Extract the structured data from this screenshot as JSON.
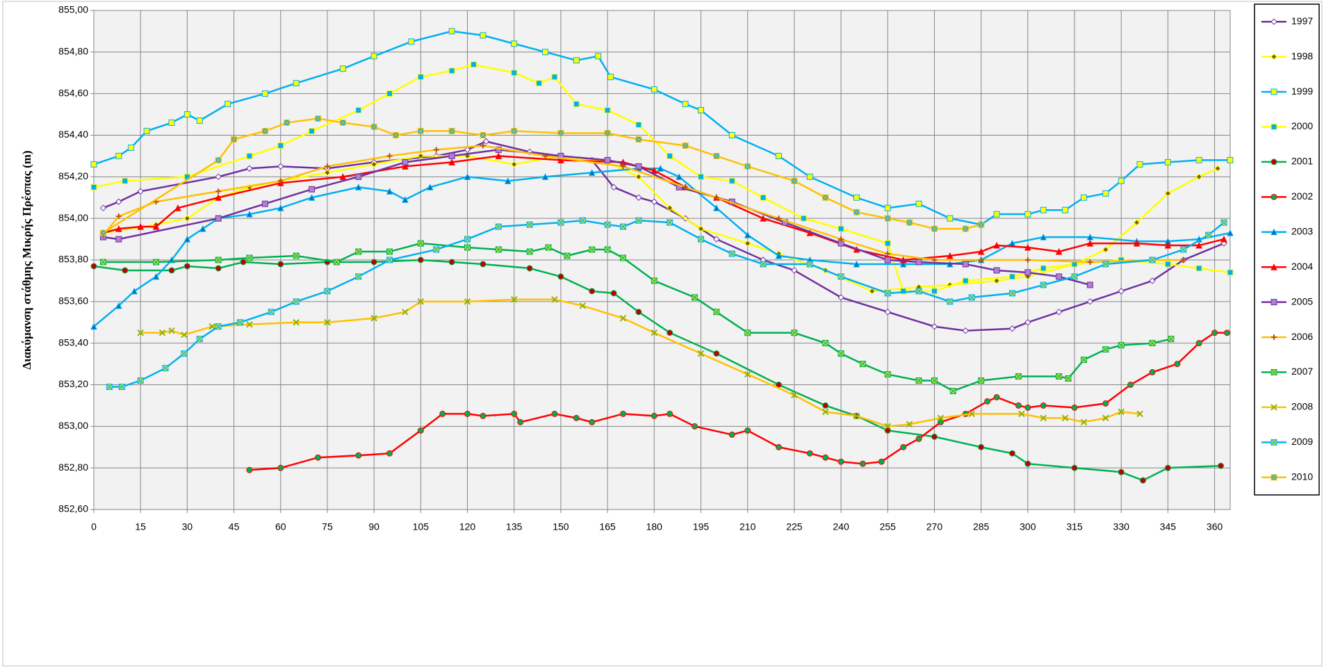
{
  "chart_data": {
    "type": "line",
    "y_label": "Διακύμανση στάθμης Μικρής Πρέσπας (m)",
    "xlim": [
      0,
      365
    ],
    "xticks": [
      0,
      15,
      30,
      45,
      60,
      75,
      90,
      105,
      120,
      135,
      150,
      165,
      180,
      195,
      210,
      225,
      240,
      255,
      270,
      285,
      300,
      315,
      330,
      345,
      360
    ],
    "ylim": [
      852.6,
      855
    ],
    "yticks": [
      {
        "value": 852.6,
        "label": "852,60"
      },
      {
        "value": 852.8,
        "label": "852,80"
      },
      {
        "value": 853,
        "label": "853,00"
      },
      {
        "value": 853.2,
        "label": "853,20"
      },
      {
        "value": 853.4,
        "label": "853,40"
      },
      {
        "value": 853.6,
        "label": "853,60"
      },
      {
        "value": 853.8,
        "label": "853,80"
      },
      {
        "value": 854,
        "label": "854,00"
      },
      {
        "value": 854.2,
        "label": "854,20"
      },
      {
        "value": 854.4,
        "label": "854,40"
      },
      {
        "value": 854.6,
        "label": "854,60"
      },
      {
        "value": 854.8,
        "label": "854,80"
      },
      {
        "value": 855,
        "label": "855,00"
      }
    ],
    "grid": true,
    "legend": "right",
    "series": [
      {
        "name": "1997",
        "color": "#7030a0",
        "marker": "diamond",
        "marker_color": "#ffffff",
        "x": [
          3,
          8,
          15,
          40,
          50,
          60,
          75,
          90,
          110,
          120,
          126,
          140,
          160,
          167,
          175,
          180,
          190,
          200,
          215,
          225,
          240,
          255,
          270,
          280,
          295,
          300,
          310,
          320,
          330,
          340,
          350,
          363
        ],
        "values": [
          854.05,
          854.08,
          854.13,
          854.2,
          854.24,
          854.25,
          854.24,
          854.27,
          854.3,
          854.33,
          854.37,
          854.32,
          854.28,
          854.15,
          854.1,
          854.08,
          854.0,
          853.9,
          853.8,
          853.75,
          853.62,
          853.55,
          853.48,
          853.46,
          853.47,
          853.5,
          853.55,
          853.6,
          853.65,
          853.7,
          853.8,
          853.88
        ]
      },
      {
        "name": "1998",
        "color": "#ffff00",
        "marker": "diamond",
        "marker_color": "#7f6000",
        "x": [
          3,
          20,
          30,
          40,
          50,
          60,
          75,
          90,
          105,
          120,
          135,
          150,
          165,
          175,
          185,
          195,
          210,
          220,
          235,
          250,
          265,
          275,
          290,
          300,
          315,
          325,
          335,
          345,
          355,
          361
        ],
        "values": [
          853.93,
          853.97,
          854.0,
          854.1,
          854.15,
          854.18,
          854.22,
          854.26,
          854.3,
          854.3,
          854.26,
          854.3,
          854.27,
          854.2,
          854.05,
          853.95,
          853.88,
          853.83,
          853.75,
          853.65,
          853.67,
          853.68,
          853.7,
          853.72,
          853.78,
          853.85,
          853.98,
          854.12,
          854.2,
          854.24
        ]
      },
      {
        "name": "1999",
        "color": "#00b0f0",
        "marker": "square",
        "marker_color": "#ffff00",
        "x": [
          0,
          8,
          12,
          17,
          25,
          30,
          34,
          43,
          55,
          65,
          80,
          90,
          102,
          115,
          125,
          135,
          145,
          155,
          162,
          166,
          180,
          190,
          195,
          205,
          220,
          230,
          245,
          255,
          265,
          275,
          285,
          290,
          300,
          305,
          312,
          318,
          325,
          330,
          336,
          345,
          355,
          365
        ],
        "values": [
          854.26,
          854.3,
          854.34,
          854.42,
          854.46,
          854.5,
          854.47,
          854.55,
          854.6,
          854.65,
          854.72,
          854.78,
          854.85,
          854.9,
          854.88,
          854.84,
          854.8,
          854.76,
          854.78,
          854.68,
          854.62,
          854.55,
          854.52,
          854.4,
          854.3,
          854.2,
          854.1,
          854.05,
          854.07,
          854.0,
          853.97,
          854.02,
          854.02,
          854.04,
          854.04,
          854.1,
          854.12,
          854.18,
          854.26,
          854.27,
          854.28,
          854.28
        ]
      },
      {
        "name": "2000",
        "color": "#ffff00",
        "marker": "square",
        "marker_color": "#00b0f0",
        "x": [
          0,
          10,
          30,
          50,
          60,
          70,
          85,
          95,
          105,
          115,
          122,
          135,
          143,
          148,
          155,
          165,
          175,
          185,
          195,
          205,
          215,
          228,
          240,
          255,
          260,
          270,
          280,
          295,
          305,
          315,
          330,
          345,
          355,
          365
        ],
        "values": [
          854.15,
          854.18,
          854.2,
          854.3,
          854.35,
          854.42,
          854.52,
          854.6,
          854.68,
          854.71,
          854.74,
          854.7,
          854.65,
          854.68,
          854.55,
          854.52,
          854.45,
          854.3,
          854.2,
          854.18,
          854.1,
          854.0,
          853.95,
          853.88,
          853.65,
          853.65,
          853.7,
          853.72,
          853.76,
          853.78,
          853.8,
          853.78,
          853.76,
          853.74
        ]
      },
      {
        "name": "2001",
        "color": "#00b050",
        "marker": "circle",
        "marker_color": "#c00000",
        "x": [
          0,
          10,
          25,
          30,
          40,
          48,
          60,
          75,
          90,
          105,
          115,
          125,
          140,
          150,
          160,
          167,
          175,
          185,
          200,
          220,
          235,
          245,
          255,
          270,
          285,
          295,
          300,
          315,
          330,
          337,
          345,
          362
        ],
        "values": [
          853.77,
          853.75,
          853.75,
          853.77,
          853.76,
          853.79,
          853.78,
          853.79,
          853.79,
          853.8,
          853.79,
          853.78,
          853.76,
          853.72,
          853.65,
          853.64,
          853.55,
          853.45,
          853.35,
          853.2,
          853.1,
          853.05,
          852.98,
          852.95,
          852.9,
          852.87,
          852.82,
          852.8,
          852.78,
          852.74,
          852.8,
          852.81
        ]
      },
      {
        "name": "2002",
        "color": "#ff0000",
        "marker": "circle",
        "marker_color": "#00b050",
        "x": [
          50,
          60,
          72,
          85,
          95,
          105,
          112,
          120,
          125,
          135,
          137,
          148,
          155,
          160,
          170,
          180,
          185,
          193,
          205,
          210,
          220,
          230,
          235,
          240,
          247,
          253,
          260,
          265,
          272,
          280,
          287,
          290,
          297,
          300,
          305,
          315,
          325,
          333,
          340,
          348,
          355,
          360,
          364
        ],
        "values": [
          852.79,
          852.8,
          852.85,
          852.86,
          852.87,
          852.98,
          853.06,
          853.06,
          853.05,
          853.06,
          853.02,
          853.06,
          853.04,
          853.02,
          853.06,
          853.05,
          853.06,
          853.0,
          852.96,
          852.98,
          852.9,
          852.87,
          852.85,
          852.83,
          852.82,
          852.83,
          852.9,
          852.94,
          853.02,
          853.06,
          853.12,
          853.14,
          853.1,
          853.09,
          853.1,
          853.09,
          853.11,
          853.2,
          853.26,
          853.3,
          853.4,
          853.45,
          853.45
        ]
      },
      {
        "name": "2003",
        "color": "#00b0f0",
        "marker": "triangle",
        "marker_color": "#0070c0",
        "x": [
          0,
          8,
          13,
          20,
          25,
          30,
          35,
          40,
          50,
          60,
          70,
          85,
          95,
          100,
          108,
          120,
          133,
          145,
          160,
          175,
          182,
          188,
          200,
          210,
          220,
          230,
          245,
          260,
          275,
          285,
          295,
          305,
          320,
          335,
          345,
          355,
          365
        ],
        "values": [
          853.48,
          853.58,
          853.65,
          853.72,
          853.8,
          853.9,
          853.95,
          854.0,
          854.02,
          854.05,
          854.1,
          854.15,
          854.13,
          854.09,
          854.15,
          854.2,
          854.18,
          854.2,
          854.22,
          854.24,
          854.24,
          854.2,
          854.05,
          853.92,
          853.82,
          853.8,
          853.78,
          853.78,
          853.78,
          853.8,
          853.88,
          853.91,
          853.91,
          853.89,
          853.89,
          853.9,
          853.93
        ]
      },
      {
        "name": "2004",
        "color": "#ff0000",
        "marker": "triangle",
        "marker_color": "#ff0000",
        "x": [
          3,
          8,
          15,
          20,
          27,
          40,
          60,
          80,
          100,
          115,
          130,
          150,
          170,
          180,
          190,
          200,
          215,
          230,
          245,
          260,
          275,
          285,
          290,
          300,
          310,
          320,
          335,
          345,
          355,
          363
        ],
        "values": [
          853.93,
          853.95,
          853.96,
          853.96,
          854.05,
          854.1,
          854.17,
          854.2,
          854.25,
          854.27,
          854.3,
          854.28,
          854.27,
          854.23,
          854.15,
          854.1,
          854.0,
          853.93,
          853.85,
          853.8,
          853.82,
          853.84,
          853.87,
          853.86,
          853.84,
          853.88,
          853.88,
          853.87,
          853.87,
          853.9
        ]
      },
      {
        "name": "2005",
        "color": "#7030a0",
        "marker": "square",
        "marker_color": "#b07fd0",
        "x": [
          3,
          8,
          40,
          55,
          70,
          85,
          100,
          115,
          130,
          150,
          165,
          175,
          188,
          205,
          222,
          240,
          255,
          265,
          280,
          290,
          300,
          310,
          320
        ],
        "values": [
          853.91,
          853.9,
          854.0,
          854.07,
          854.14,
          854.2,
          854.27,
          854.3,
          854.33,
          854.3,
          854.28,
          854.25,
          854.15,
          854.08,
          853.98,
          853.88,
          853.8,
          853.79,
          853.78,
          853.75,
          853.74,
          853.72,
          853.68
        ]
      },
      {
        "name": "2006",
        "color": "#ffc000",
        "marker": "plus",
        "marker_color": "#c05000",
        "x": [
          3,
          8,
          20,
          40,
          60,
          75,
          95,
          110,
          125,
          145,
          170,
          190,
          200,
          220,
          240,
          255,
          270,
          285,
          300,
          320,
          340,
          350
        ],
        "values": [
          853.92,
          854.01,
          854.08,
          854.13,
          854.18,
          854.25,
          854.3,
          854.33,
          854.35,
          854.3,
          854.25,
          854.15,
          854.1,
          854.0,
          853.9,
          853.83,
          853.8,
          853.8,
          853.8,
          853.79,
          853.8,
          853.8
        ]
      },
      {
        "name": "2007",
        "color": "#00b050",
        "marker": "xsquare",
        "marker_color": "#c0e040",
        "x": [
          3,
          20,
          40,
          50,
          65,
          78,
          85,
          95,
          105,
          120,
          130,
          140,
          146,
          152,
          160,
          165,
          170,
          180,
          193,
          200,
          210,
          225,
          235,
          240,
          247,
          255,
          265,
          270,
          276,
          285,
          297,
          310,
          313,
          318,
          325,
          330,
          340,
          346
        ],
        "values": [
          853.79,
          853.79,
          853.8,
          853.81,
          853.82,
          853.79,
          853.84,
          853.84,
          853.88,
          853.86,
          853.85,
          853.84,
          853.86,
          853.82,
          853.85,
          853.85,
          853.81,
          853.7,
          853.62,
          853.55,
          853.45,
          853.45,
          853.4,
          853.35,
          853.3,
          853.25,
          853.22,
          853.22,
          853.17,
          853.22,
          853.24,
          853.24,
          853.23,
          853.32,
          853.37,
          853.39,
          853.4,
          853.42
        ]
      },
      {
        "name": "2008",
        "color": "#ffc000",
        "marker": "x",
        "marker_color": "#92b000",
        "x": [
          15,
          22,
          25,
          29,
          38,
          50,
          65,
          75,
          90,
          100,
          105,
          120,
          135,
          148,
          157,
          170,
          180,
          195,
          210,
          225,
          235,
          245,
          255,
          262,
          272,
          282,
          298,
          305,
          312,
          318,
          325,
          330,
          336
        ],
        "values": [
          853.45,
          853.45,
          853.46,
          853.44,
          853.48,
          853.49,
          853.5,
          853.5,
          853.52,
          853.55,
          853.6,
          853.6,
          853.61,
          853.61,
          853.58,
          853.52,
          853.45,
          853.35,
          853.25,
          853.15,
          853.07,
          853.05,
          853.0,
          853.01,
          853.04,
          853.06,
          853.06,
          853.04,
          853.04,
          853.02,
          853.04,
          853.07,
          853.06
        ]
      },
      {
        "name": "2009",
        "color": "#00b0f0",
        "marker": "xsquare",
        "marker_color": "#c0e040",
        "x": [
          5,
          9,
          15,
          23,
          29,
          34,
          40,
          47,
          57,
          65,
          75,
          85,
          95,
          110,
          120,
          130,
          140,
          150,
          157,
          165,
          170,
          175,
          185,
          195,
          205,
          215,
          230,
          240,
          255,
          265,
          275,
          282,
          295,
          305,
          315,
          325,
          340,
          350,
          358,
          363
        ],
        "values": [
          853.19,
          853.19,
          853.22,
          853.28,
          853.35,
          853.42,
          853.48,
          853.5,
          853.55,
          853.6,
          853.65,
          853.72,
          853.8,
          853.85,
          853.9,
          853.96,
          853.97,
          853.98,
          853.99,
          853.97,
          853.96,
          853.99,
          853.98,
          853.9,
          853.83,
          853.78,
          853.78,
          853.72,
          853.64,
          853.65,
          853.6,
          853.62,
          853.64,
          853.68,
          853.72,
          853.78,
          853.8,
          853.85,
          853.92,
          853.98
        ]
      },
      {
        "name": "2010",
        "color": "#ffc000",
        "marker": "xsquare",
        "marker_color": "#00b0f0",
        "x": [
          3,
          40,
          45,
          55,
          62,
          72,
          80,
          90,
          97,
          105,
          115,
          125,
          135,
          150,
          165,
          175,
          190,
          200,
          210,
          225,
          235,
          245,
          255,
          262,
          270,
          280,
          285
        ],
        "values": [
          853.93,
          854.28,
          854.38,
          854.42,
          854.46,
          854.48,
          854.46,
          854.44,
          854.4,
          854.42,
          854.42,
          854.4,
          854.42,
          854.41,
          854.41,
          854.38,
          854.35,
          854.3,
          854.25,
          854.18,
          854.1,
          854.03,
          854.0,
          853.98,
          853.95,
          853.95,
          853.97
        ]
      }
    ]
  }
}
